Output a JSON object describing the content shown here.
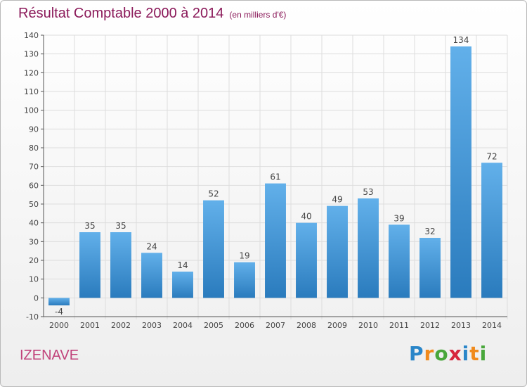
{
  "title": "Résultat Comptable 2000 à 2014",
  "subtitle": "(en milliers d'€)",
  "commune": "IZENAVE",
  "logo": {
    "text": "Proxiti",
    "letter_colors": [
      "#2a86c9",
      "#f08a1c",
      "#49a73b",
      "#d7263d",
      "#2a86c9",
      "#f08a1c",
      "#49a73b"
    ]
  },
  "colors": {
    "bar_light": "#62b0ea",
    "bar_dark": "#2a7bbd",
    "title": "#8b1a5a",
    "commune": "#c1417a",
    "axis": "#555555",
    "grid": "#dddddd"
  },
  "chart_data": {
    "type": "bar",
    "categories": [
      "2000",
      "2001",
      "2002",
      "2003",
      "2004",
      "2005",
      "2006",
      "2007",
      "2008",
      "2009",
      "2010",
      "2011",
      "2012",
      "2013",
      "2014"
    ],
    "values": [
      -4,
      35,
      35,
      24,
      14,
      52,
      19,
      61,
      40,
      49,
      53,
      39,
      32,
      134,
      72
    ],
    "data_labels": [
      "-4",
      "35",
      "35",
      "24",
      "14",
      "52",
      "19",
      "61",
      "40",
      "49",
      "53",
      "39",
      "32",
      "134",
      "72"
    ],
    "yticks": [
      -10,
      0,
      10,
      20,
      30,
      40,
      50,
      60,
      70,
      80,
      90,
      100,
      110,
      120,
      130,
      140
    ],
    "ylim": [
      -10,
      140
    ],
    "grid": true,
    "title": "Résultat Comptable 2000 à 2014",
    "xlabel": "",
    "ylabel": ""
  }
}
